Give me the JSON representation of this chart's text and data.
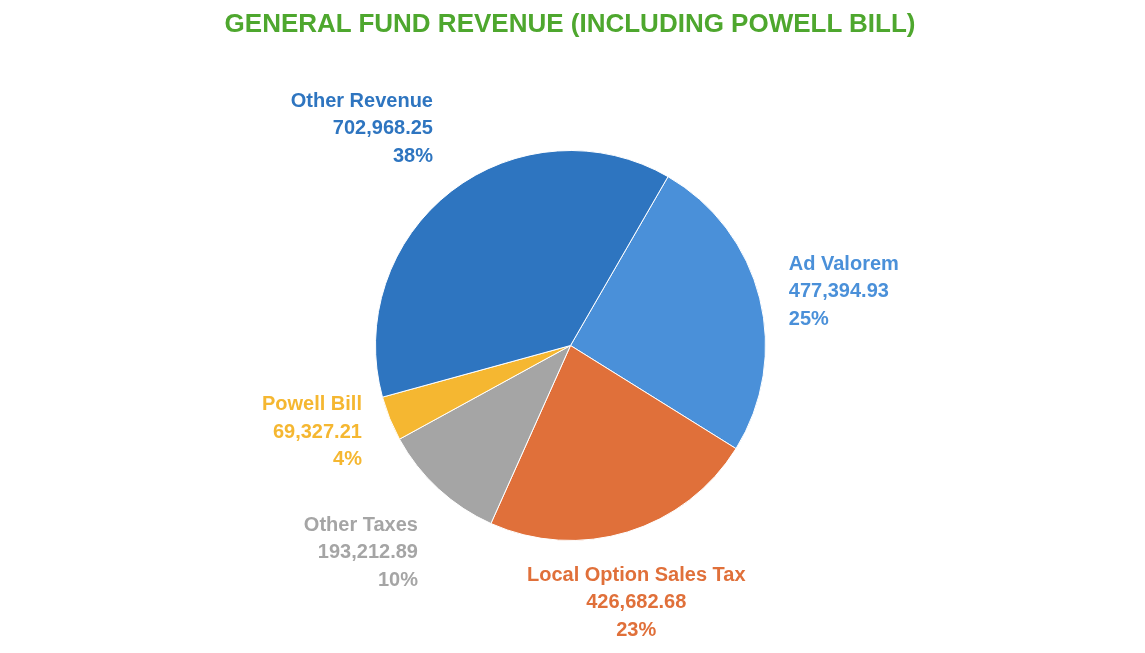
{
  "chart_data": {
    "type": "pie",
    "title": "GENERAL FUND REVENUE (INCLUDING POWELL BILL)",
    "categories": [
      "Ad Valorem",
      "Local Option Sales Tax",
      "Other Taxes",
      "Powell Bill",
      "Other Revenue"
    ],
    "values": [
      477394.93,
      426682.68,
      193212.89,
      69327.21,
      702968.25
    ],
    "colors": [
      "#4a90d9",
      "#e0703a",
      "#a5a5a5",
      "#f5b731",
      "#2e75c0"
    ],
    "value_labels": [
      "477,394.93\n25%",
      "426,682.68\n23%",
      "193,212.89\n10%",
      "69,327.21\n4%",
      "702,968.25\n38%"
    ]
  }
}
